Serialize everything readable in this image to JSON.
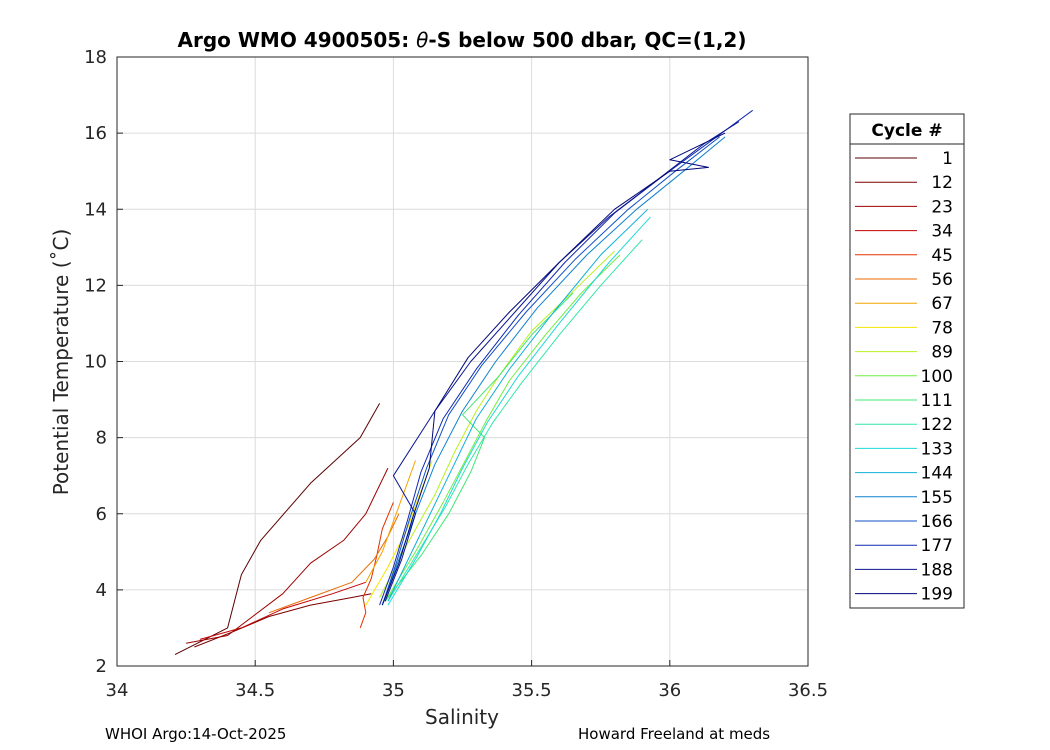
{
  "chart_data": {
    "type": "line",
    "title": "Argo WMO 4900505: θ-S below 500 dbar,  QC=(1,2)",
    "title_parts": {
      "prefix": "Argo WMO 4900505: ",
      "theta": "θ",
      "suffix": "-S below 500 dbar,  QC=(1,2)"
    },
    "xlabel": "Salinity",
    "ylabel": "Potential Temperature (˚C)",
    "xlim": [
      34,
      36.5
    ],
    "ylim": [
      2,
      18
    ],
    "xticks": [
      34,
      34.5,
      35,
      35.5,
      36,
      36.5
    ],
    "xtick_labels": [
      "34",
      "34.5",
      "35",
      "35.5",
      "36",
      "36.5"
    ],
    "yticks": [
      2,
      4,
      6,
      8,
      10,
      12,
      14,
      16,
      18
    ],
    "ytick_labels": [
      "2",
      "4",
      "6",
      "8",
      "10",
      "12",
      "14",
      "16",
      "18"
    ],
    "grid": true,
    "colormap": "jet-reversed (cycle 1 dark red → cycle 199 dark blue)",
    "legend": {
      "title": "Cycle #",
      "placement": "outside-right",
      "entries": [
        "1",
        "12",
        "23",
        "34",
        "45",
        "56",
        "67",
        "78",
        "89",
        "100",
        "111",
        "122",
        "133",
        "144",
        "155",
        "166",
        "177",
        "188",
        "199"
      ],
      "colors": [
        "#5a0000",
        "#7a0000",
        "#9e0000",
        "#c60000",
        "#e43000",
        "#ec6a00",
        "#f2a300",
        "#f4e800",
        "#b8f020",
        "#70ef40",
        "#40e870",
        "#30e8a8",
        "#20d8d8",
        "#10b0d8",
        "#1080d0",
        "#1050c8",
        "#1028b0",
        "#0a1690",
        "#00087a"
      ]
    },
    "series": [
      {
        "name": "1",
        "x": [
          34.21,
          34.4,
          34.45,
          34.52,
          34.7,
          34.88,
          34.95
        ],
        "y": [
          2.3,
          3.0,
          4.4,
          5.3,
          6.8,
          8.0,
          8.9
        ]
      },
      {
        "name": "12",
        "x": [
          34.28,
          34.42,
          34.55,
          34.7,
          34.85,
          34.92
        ],
        "y": [
          2.5,
          2.9,
          3.3,
          3.6,
          3.8,
          3.9
        ]
      },
      {
        "name": "23",
        "x": [
          34.25,
          34.4,
          34.6,
          34.7,
          34.82,
          34.9,
          34.98
        ],
        "y": [
          2.6,
          2.8,
          3.9,
          4.7,
          5.3,
          6.0,
          7.2
        ]
      },
      {
        "name": "34",
        "x": [
          34.3,
          34.45,
          34.6,
          34.78,
          34.9
        ],
        "y": [
          2.7,
          3.0,
          3.5,
          3.9,
          4.2
        ]
      },
      {
        "name": "45",
        "x": [
          34.88,
          34.9,
          34.89,
          34.92,
          34.94,
          34.96,
          35.0
        ],
        "y": [
          3.0,
          3.4,
          3.8,
          4.3,
          4.9,
          5.6,
          6.3
        ]
      },
      {
        "name": "56",
        "x": [
          34.55,
          34.7,
          34.85,
          34.93,
          34.98,
          35.02
        ],
        "y": [
          3.4,
          3.8,
          4.2,
          4.8,
          5.4,
          6.0
        ]
      },
      {
        "name": "67",
        "x": [
          34.9,
          34.96,
          35.0,
          35.04,
          35.08
        ],
        "y": [
          4.2,
          5.0,
          5.8,
          6.6,
          7.4
        ]
      },
      {
        "name": "78",
        "x": [
          34.9,
          34.98,
          35.05,
          35.1,
          35.14
        ],
        "y": [
          3.6,
          4.6,
          5.6,
          6.6,
          7.4
        ]
      },
      {
        "name": "89",
        "x": [
          34.95,
          35.05,
          35.15,
          35.22,
          35.3,
          35.38,
          35.5,
          35.63,
          35.8
        ],
        "y": [
          3.8,
          5.2,
          6.5,
          7.6,
          8.7,
          9.6,
          10.8,
          11.7,
          12.9
        ]
      },
      {
        "name": "100",
        "x": [
          34.97,
          35.08,
          35.18,
          35.26,
          35.34,
          35.42,
          35.55,
          35.68,
          35.82
        ],
        "y": [
          3.7,
          5.0,
          6.3,
          7.4,
          8.5,
          9.5,
          10.7,
          11.8,
          12.8
        ]
      },
      {
        "name": "111",
        "x": [
          34.97,
          35.1,
          35.2,
          35.28,
          35.33,
          35.25,
          35.38,
          35.5,
          35.65
        ],
        "y": [
          3.7,
          4.9,
          6.0,
          7.1,
          8.0,
          8.6,
          9.6,
          10.7,
          11.8
        ]
      },
      {
        "name": "122",
        "x": [
          34.98,
          35.09,
          35.19,
          35.27,
          35.36,
          35.46,
          35.6,
          35.75,
          35.9
        ],
        "y": [
          3.7,
          5.0,
          6.2,
          7.3,
          8.4,
          9.4,
          10.7,
          12.0,
          13.2
        ]
      },
      {
        "name": "133",
        "x": [
          34.98,
          35.08,
          35.17,
          35.25,
          35.34,
          35.45,
          35.6,
          35.78,
          35.93
        ],
        "y": [
          3.6,
          4.8,
          6.0,
          7.2,
          8.4,
          9.6,
          11.0,
          12.6,
          13.8
        ]
      },
      {
        "name": "144",
        "x": [
          34.98,
          35.06,
          35.14,
          35.22,
          35.3,
          35.42,
          35.58,
          35.75,
          35.92
        ],
        "y": [
          3.7,
          4.9,
          6.1,
          7.3,
          8.5,
          9.8,
          11.3,
          12.8,
          14.0
        ]
      },
      {
        "name": "155",
        "x": [
          34.96,
          35.02,
          35.08,
          35.15,
          35.25,
          35.37,
          35.52,
          35.7,
          35.88,
          36.05,
          36.2
        ],
        "y": [
          3.6,
          4.8,
          6.0,
          7.3,
          8.7,
          10.0,
          11.4,
          12.8,
          14.0,
          15.0,
          15.9
        ]
      },
      {
        "name": "166",
        "x": [
          34.96,
          35.01,
          35.06,
          35.12,
          35.2,
          35.32,
          35.48,
          35.66,
          35.85,
          36.02,
          36.18
        ],
        "y": [
          3.6,
          4.7,
          5.9,
          7.2,
          8.6,
          9.9,
          11.3,
          12.7,
          14.0,
          15.0,
          15.9
        ]
      },
      {
        "name": "177",
        "x": [
          34.95,
          35.0,
          35.05,
          35.1,
          35.18,
          35.3,
          35.45,
          35.62,
          35.8,
          35.98,
          36.15,
          36.3
        ],
        "y": [
          3.6,
          4.6,
          5.8,
          7.1,
          8.5,
          9.8,
          11.2,
          12.6,
          13.9,
          14.9,
          15.8,
          16.6
        ]
      },
      {
        "name": "188",
        "x": [
          34.97,
          35.03,
          35.08,
          35.0,
          35.15,
          35.28,
          35.44,
          35.6,
          35.78,
          35.96,
          36.12,
          36.25
        ],
        "y": [
          3.7,
          4.8,
          6.0,
          7.0,
          8.7,
          10.0,
          11.3,
          12.6,
          13.8,
          14.8,
          15.7,
          16.3
        ]
      },
      {
        "name": "199",
        "x": [
          34.96,
          35.02,
          35.07,
          35.13,
          35.15,
          35.27,
          35.42,
          35.6,
          35.8,
          36.0,
          36.14,
          36.0,
          36.2
        ],
        "y": [
          3.6,
          4.7,
          5.9,
          7.2,
          8.7,
          10.1,
          11.3,
          12.6,
          14.0,
          15.0,
          15.1,
          15.3,
          16.0
        ]
      }
    ]
  },
  "footer": {
    "left": "WHOI Argo:14-Oct-2025",
    "right": "Howard Freeland at meds"
  }
}
